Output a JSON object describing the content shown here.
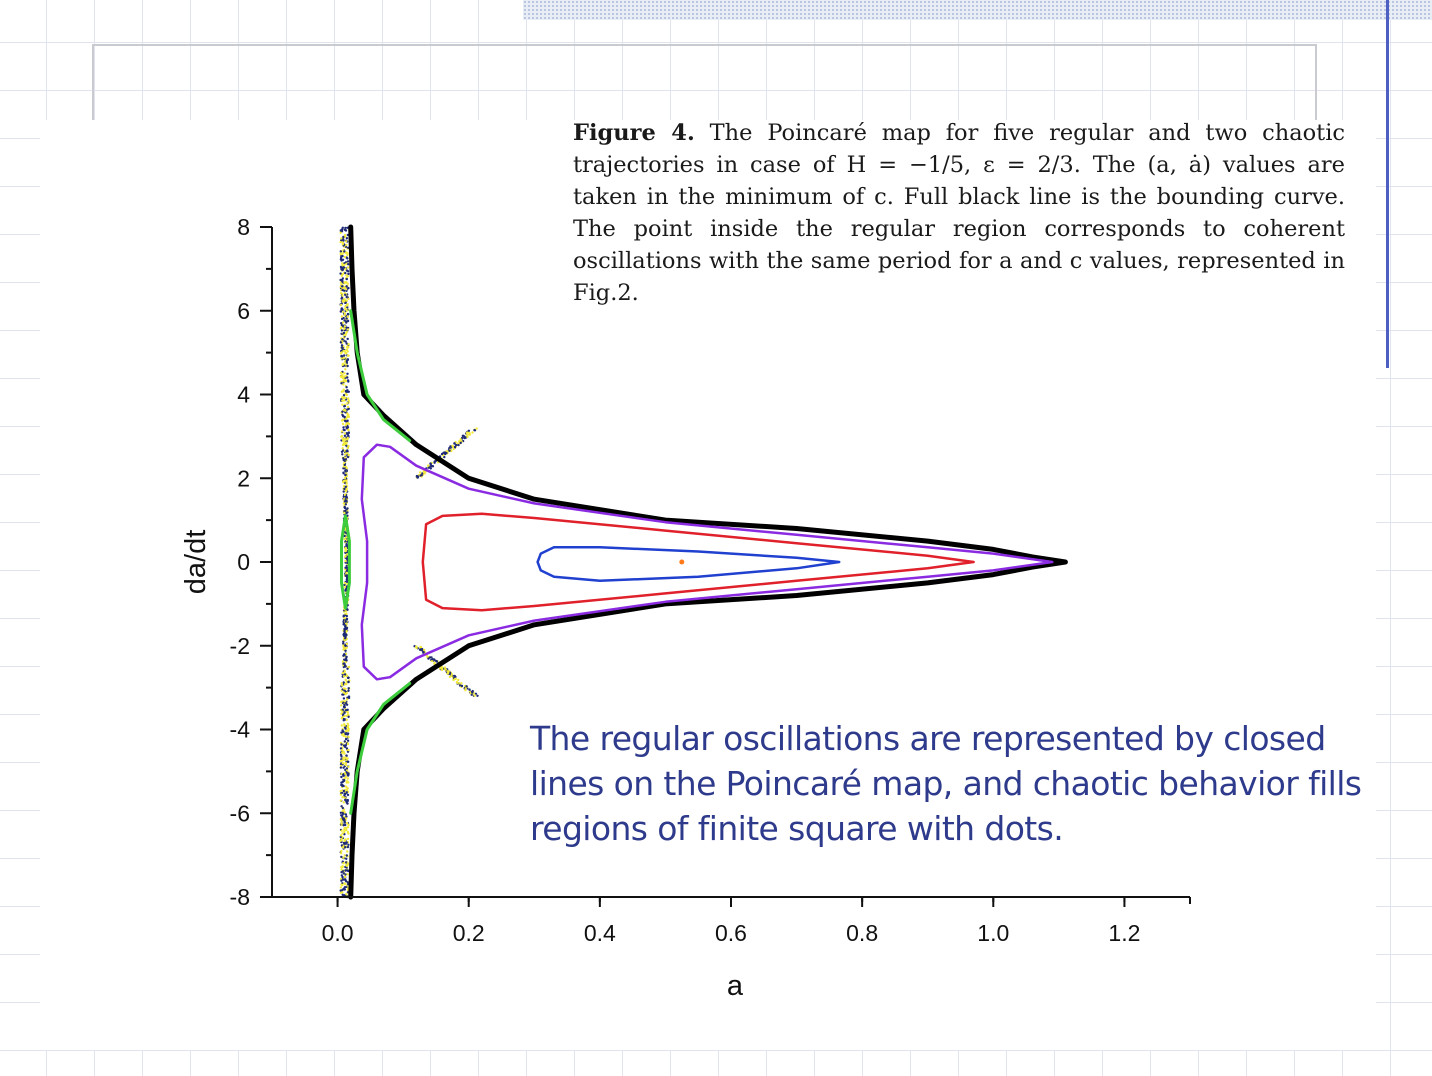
{
  "caption": {
    "lead": "Figure 4.",
    "text": "The Poincaré map for five regular and two chaotic trajectories in case of H = −1/5, ε = 2/3. The (a, ȧ) values are taken in the minimum of c. Full black line is the bounding curve. The point inside the regular region corresponds to coherent oscillations with the same period for a and c values, represented in Fig.2."
  },
  "note": "The regular oscillations are represented by closed lines on the Poincaré map, and chaotic behavior fills regions of finite square with dots.",
  "colors": {
    "bounding": "#000000",
    "purple": "#8a2be2",
    "red": "#e0202a",
    "blue": "#2040d0",
    "green": "#3ccc3c",
    "chaos_yellow": "#f2ea3a",
    "chaos_navy": "#1e2a78",
    "center_point": "#ff7a1a",
    "note_text": "#2e3a8c"
  },
  "chart_data": {
    "type": "scatter",
    "title": "",
    "xlabel": "a",
    "ylabel": "da/dt",
    "xlim": [
      -0.1,
      1.3
    ],
    "ylim": [
      -8,
      8
    ],
    "x_ticks": [
      "0.0",
      "0.2",
      "0.4",
      "0.6",
      "0.8",
      "1.0",
      "1.2"
    ],
    "y_ticks": [
      "8",
      "6",
      "4",
      "2",
      "0",
      "-2",
      "-4",
      "-6",
      "-8"
    ],
    "grid": false,
    "center_point": {
      "a": 0.525,
      "dadt": 0.0
    },
    "series": [
      {
        "color_key": "bounding",
        "points": [
          [
            0.02,
            8
          ],
          [
            0.022,
            7
          ],
          [
            0.025,
            6
          ],
          [
            0.03,
            5
          ],
          [
            0.04,
            4
          ],
          [
            0.07,
            3.5
          ],
          [
            0.12,
            2.8
          ],
          [
            0.2,
            2
          ],
          [
            0.3,
            1.5
          ],
          [
            0.5,
            1.0
          ],
          [
            0.7,
            0.8
          ],
          [
            0.9,
            0.5
          ],
          [
            1.0,
            0.3
          ],
          [
            1.06,
            0.12
          ],
          [
            1.11,
            0
          ],
          [
            1.06,
            -0.12
          ],
          [
            1.0,
            -0.3
          ],
          [
            0.9,
            -0.5
          ],
          [
            0.7,
            -0.8
          ],
          [
            0.5,
            -1.0
          ],
          [
            0.3,
            -1.5
          ],
          [
            0.2,
            -2
          ],
          [
            0.12,
            -2.8
          ],
          [
            0.07,
            -3.5
          ],
          [
            0.04,
            -4
          ],
          [
            0.03,
            -5
          ],
          [
            0.025,
            -6
          ],
          [
            0.022,
            -7
          ],
          [
            0.02,
            -8
          ]
        ]
      },
      {
        "color_key": "purple",
        "points": [
          [
            1.09,
            0
          ],
          [
            1.0,
            0.2
          ],
          [
            0.9,
            0.35
          ],
          [
            0.7,
            0.65
          ],
          [
            0.5,
            0.95
          ],
          [
            0.3,
            1.4
          ],
          [
            0.2,
            1.75
          ],
          [
            0.12,
            2.3
          ],
          [
            0.08,
            2.75
          ],
          [
            0.06,
            2.8
          ],
          [
            0.04,
            2.5
          ],
          [
            0.037,
            1.5
          ],
          [
            0.045,
            0.5
          ],
          [
            0.045,
            -0.5
          ],
          [
            0.037,
            -1.5
          ],
          [
            0.04,
            -2.5
          ],
          [
            0.06,
            -2.8
          ],
          [
            0.08,
            -2.75
          ],
          [
            0.12,
            -2.3
          ],
          [
            0.2,
            -1.75
          ],
          [
            0.3,
            -1.4
          ],
          [
            0.5,
            -0.95
          ],
          [
            0.7,
            -0.65
          ],
          [
            0.9,
            -0.35
          ],
          [
            1.0,
            -0.2
          ],
          [
            1.09,
            0
          ]
        ]
      },
      {
        "color_key": "red",
        "points": [
          [
            0.97,
            0
          ],
          [
            0.9,
            0.15
          ],
          [
            0.7,
            0.45
          ],
          [
            0.5,
            0.75
          ],
          [
            0.3,
            1.05
          ],
          [
            0.22,
            1.15
          ],
          [
            0.16,
            1.1
          ],
          [
            0.135,
            0.9
          ],
          [
            0.13,
            0
          ],
          [
            0.135,
            -0.9
          ],
          [
            0.16,
            -1.1
          ],
          [
            0.22,
            -1.15
          ],
          [
            0.3,
            -1.05
          ],
          [
            0.5,
            -0.75
          ],
          [
            0.7,
            -0.45
          ],
          [
            0.9,
            -0.15
          ],
          [
            0.97,
            0
          ]
        ]
      },
      {
        "color_key": "blue",
        "points": [
          [
            0.765,
            0
          ],
          [
            0.7,
            0.1
          ],
          [
            0.55,
            0.25
          ],
          [
            0.4,
            0.35
          ],
          [
            0.33,
            0.35
          ],
          [
            0.31,
            0.2
          ],
          [
            0.305,
            0
          ],
          [
            0.31,
            -0.2
          ],
          [
            0.33,
            -0.35
          ],
          [
            0.4,
            -0.45
          ],
          [
            0.55,
            -0.35
          ],
          [
            0.7,
            -0.15
          ],
          [
            0.765,
            0
          ]
        ]
      },
      {
        "color_key": "green",
        "points": [
          [
            0.012,
            1.1
          ],
          [
            0.018,
            0.5
          ],
          [
            0.018,
            -0.5
          ],
          [
            0.012,
            -1.1
          ],
          [
            0.006,
            -0.5
          ],
          [
            0.006,
            0.5
          ],
          [
            0.012,
            1.1
          ]
        ]
      },
      {
        "color_key": "green",
        "points": [
          [
            0.02,
            6
          ],
          [
            0.03,
            5
          ],
          [
            0.045,
            4
          ],
          [
            0.07,
            3.4
          ],
          [
            0.11,
            2.9
          ]
        ]
      },
      {
        "color_key": "green",
        "points": [
          [
            0.02,
            -6
          ],
          [
            0.03,
            -5
          ],
          [
            0.045,
            -4
          ],
          [
            0.07,
            -3.4
          ],
          [
            0.11,
            -2.9
          ]
        ]
      }
    ]
  }
}
